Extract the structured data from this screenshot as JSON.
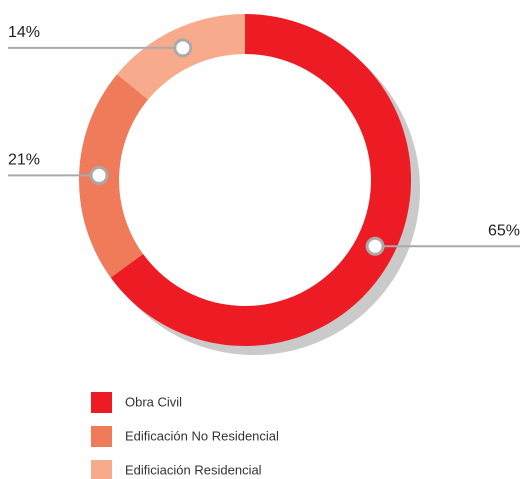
{
  "chart_data": {
    "type": "donut",
    "categories": [
      "Obra Civil",
      "Edificación No Residencial",
      "Edificiación Residencial"
    ],
    "values": [
      65,
      21,
      14
    ],
    "value_labels": [
      "65%",
      "21%",
      "14%"
    ],
    "colors": [
      "#ed1c24",
      "#f07b5a",
      "#f8aa8c"
    ]
  }
}
